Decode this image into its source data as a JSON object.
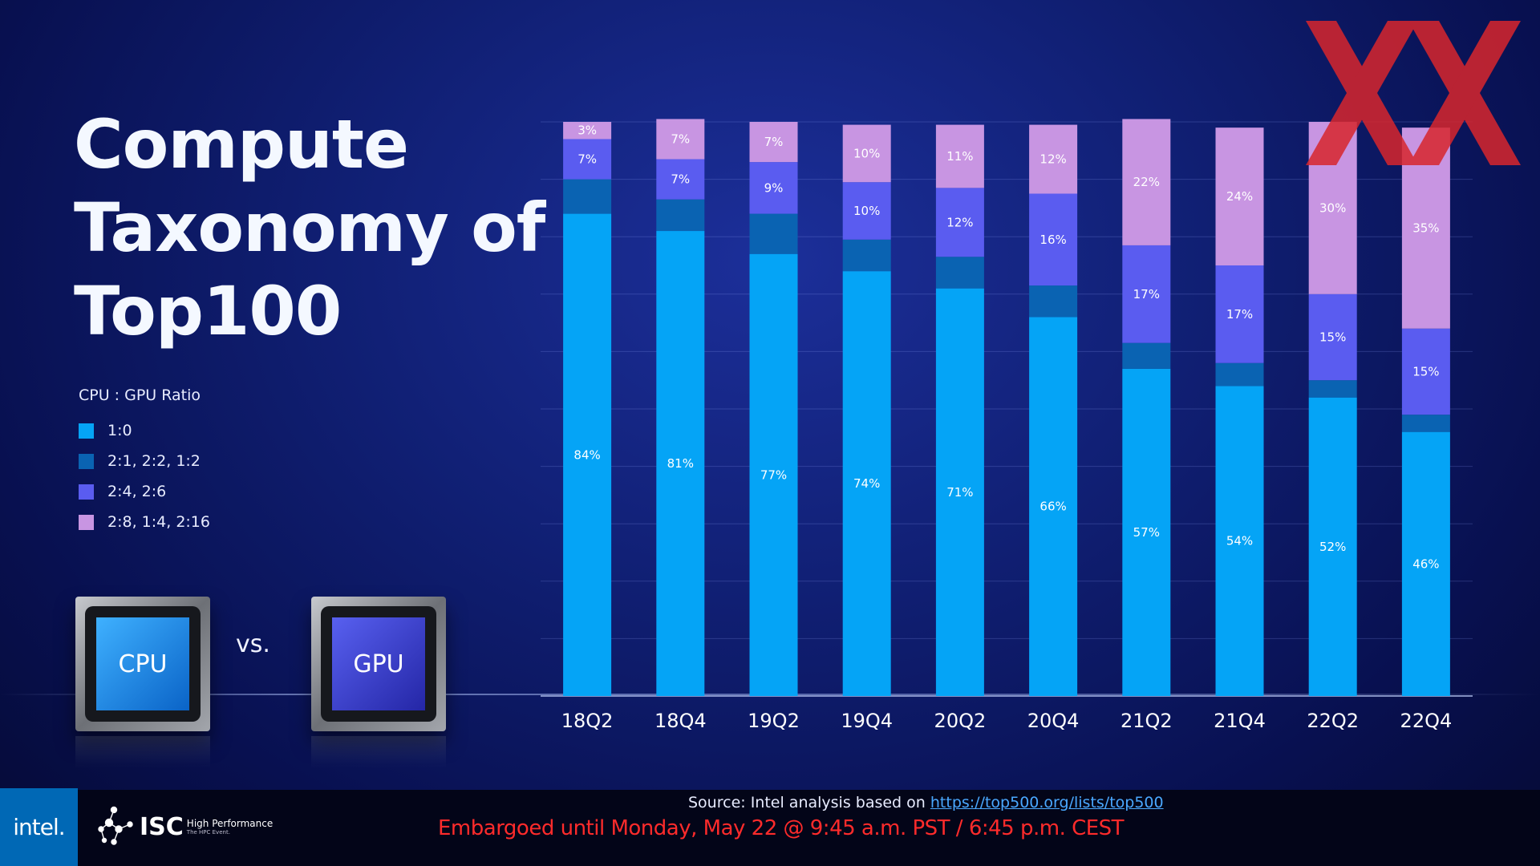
{
  "title_lines": [
    "Compute",
    "Taxonomy of",
    "Top100"
  ],
  "legend": {
    "heading": "CPU : GPU Ratio",
    "items": [
      {
        "label": "1:0",
        "color": "#05a4f6"
      },
      {
        "label": "2:1, 2:2, 1:2",
        "color": "#0a63b2"
      },
      {
        "label": "2:4, 2:6",
        "color": "#5a5cf0"
      },
      {
        "label": "2:8, 1:4, 2:16",
        "color": "#c895e2"
      }
    ]
  },
  "chips": {
    "cpu": "CPU",
    "vs": "vs.",
    "gpu": "GPU"
  },
  "chart_data": {
    "type": "bar",
    "stacked": true,
    "ylim": [
      0,
      100
    ],
    "grid": true,
    "legend_position": "left",
    "categories": [
      "18Q2",
      "18Q4",
      "19Q2",
      "19Q4",
      "20Q2",
      "20Q4",
      "21Q2",
      "21Q4",
      "22Q2",
      "22Q4"
    ],
    "series": [
      {
        "name": "1:0",
        "color": "#05a4f6",
        "values": [
          84,
          81,
          77,
          74,
          71,
          66,
          57,
          54,
          52,
          46
        ]
      },
      {
        "name": "2:1, 2:2, 1:2",
        "color": "#0a63b2",
        "values": [
          6,
          5.5,
          7,
          5.5,
          5.5,
          5.5,
          4.5,
          4,
          3,
          3
        ]
      },
      {
        "name": "2:4, 2:6",
        "color": "#5a5cf0",
        "values": [
          7,
          7,
          9,
          10,
          12,
          16,
          17,
          17,
          15,
          15
        ]
      },
      {
        "name": "2:8, 1:4, 2:16",
        "color": "#c895e2",
        "values": [
          3,
          7,
          7,
          10,
          11,
          12,
          22,
          24,
          30,
          35
        ]
      }
    ],
    "data_labels": [
      [
        "84%",
        "81%",
        "77%",
        "74%",
        "71%",
        "66%",
        "57%",
        "54%",
        "52%",
        "46%"
      ],
      [
        "",
        "",
        "",
        "",
        "",
        "",
        "",
        "",
        "",
        ""
      ],
      [
        "7%",
        "7%",
        "9%",
        "10%",
        "12%",
        "16%",
        "17%",
        "17%",
        "15%",
        "15%"
      ],
      [
        "3%",
        "7%",
        "7%",
        "10%",
        "11%",
        "12%",
        "22%",
        "24%",
        "30%",
        "35%"
      ]
    ]
  },
  "source": {
    "text": "Source: Intel analysis based on ",
    "link": "https://top500.org/lists/top500"
  },
  "embargo": "Embargoed until Monday, May 22 @ 9:45 a.m. PST / 6:45 p.m. CEST",
  "branding": {
    "intel": "intel.",
    "isc": "ISC",
    "isc_sub1": "High Performance",
    "isc_sub2": "The HPC Event."
  }
}
